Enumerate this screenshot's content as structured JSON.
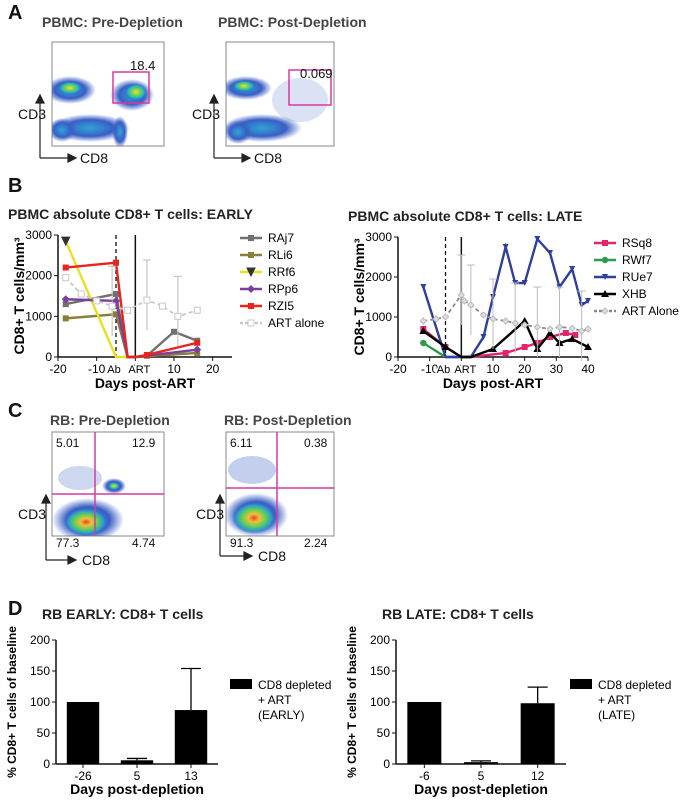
{
  "panels": {
    "a": "A",
    "b": "B",
    "c": "C",
    "d": "D"
  },
  "flow_a": [
    {
      "title": "PBMC: Pre-Depletion",
      "gate_value": "18.4",
      "ylabel": "CD3",
      "xlabel": "CD8"
    },
    {
      "title": "PBMC: Post-Depletion",
      "gate_value": "0.069",
      "ylabel": "CD3",
      "xlabel": "CD8"
    }
  ],
  "flow_c": [
    {
      "title": "RB: Pre-Depletion",
      "q_ul": "5.01",
      "q_ur": "12.9",
      "q_ll": "77.3",
      "q_lr": "4.74",
      "ylabel": "CD3",
      "xlabel": "CD8"
    },
    {
      "title": "RB: Post-Depletion",
      "q_ul": "6.11",
      "q_ur": "0.38",
      "q_ll": "91.3",
      "q_lr": "2.24",
      "ylabel": "CD3",
      "xlabel": "CD8"
    }
  ],
  "colors": {
    "RAj7": "#707070",
    "RLi6": "#8a7d3a",
    "RRf6": "#e8e020",
    "RPp6": "#7b3fa0",
    "RZI5": "#e8251d",
    "ART alone": "#c8c8c8",
    "RSq8": "#e0246e",
    "RWf7": "#2e9a4e",
    "RUe7": "#2e3f9e",
    "XHB": "#000000",
    "flow_gate": "#d63aa0"
  },
  "chart_data": [
    {
      "type": "line",
      "title": "PBMC absolute CD8+ T cells: EARLY",
      "xlabel": "Days post-ART",
      "ylabel": "CD8+ T cells/mm³",
      "xlim": [
        -20,
        25
      ],
      "ylim": [
        0,
        3000
      ],
      "xticks": [
        "-20",
        "-10",
        "0",
        "10",
        "20"
      ],
      "yticks": [
        "0",
        "1000",
        "2000",
        "3000"
      ],
      "annotations": [
        "Ab",
        "ART"
      ],
      "series": [
        {
          "name": "RAj7",
          "x": [
            -18,
            -5,
            -2,
            0,
            3,
            10,
            16
          ],
          "y": [
            1300,
            1550,
            0,
            0,
            30,
            620,
            400
          ]
        },
        {
          "name": "RLi6",
          "x": [
            -18,
            -5,
            -2,
            0,
            16
          ],
          "y": [
            950,
            1050,
            0,
            0,
            100
          ]
        },
        {
          "name": "RRf6",
          "x": [
            -18,
            -5,
            -2
          ],
          "y": [
            2850,
            0,
            0
          ]
        },
        {
          "name": "RPp6",
          "x": [
            -18,
            -5,
            -2,
            0,
            16
          ],
          "y": [
            1420,
            1380,
            0,
            0,
            180
          ]
        },
        {
          "name": "RZI5",
          "x": [
            -18,
            -5,
            -2,
            0,
            3,
            16
          ],
          "y": [
            2200,
            2320,
            0,
            0,
            50,
            350
          ]
        },
        {
          "name": "ART alone",
          "x": [
            -18,
            -14,
            -10,
            -6,
            -2,
            3,
            7,
            11,
            16
          ],
          "y": [
            1950,
            1550,
            1380,
            1250,
            1150,
            1400,
            1250,
            1000,
            1150
          ]
        }
      ],
      "legend": [
        "RAj7",
        "RLi6",
        "RRf6",
        "RPp6",
        "RZI5",
        "ART alone"
      ]
    },
    {
      "type": "line",
      "title": "PBMC absolute CD8+ T cells: LATE",
      "xlabel": "Days post-ART",
      "ylabel": "CD8+ T cells/mm³",
      "xlim": [
        -20,
        40
      ],
      "ylim": [
        0,
        3000
      ],
      "xticks": [
        "-20",
        "-10",
        "0",
        "10",
        "20",
        "30",
        "40"
      ],
      "yticks": [
        "0",
        "1000",
        "2000",
        "3000"
      ],
      "annotations": [
        "Ab",
        "ART"
      ],
      "series": [
        {
          "name": "RSq8",
          "x": [
            -12,
            -5,
            0,
            3,
            14,
            20,
            24,
            28,
            33,
            36
          ],
          "y": [
            700,
            250,
            0,
            0,
            100,
            250,
            350,
            500,
            600,
            550
          ]
        },
        {
          "name": "RWf7",
          "x": [
            -12,
            -5,
            0,
            3
          ],
          "y": [
            350,
            0,
            0,
            0
          ]
        },
        {
          "name": "RUe7",
          "x": [
            -12,
            -5,
            0,
            3,
            7,
            10,
            14,
            17,
            20,
            24,
            28,
            31,
            35,
            38,
            40
          ],
          "y": [
            1750,
            0,
            0,
            0,
            500,
            1500,
            2750,
            1850,
            1850,
            2950,
            2600,
            1750,
            2200,
            1300,
            1400
          ]
        },
        {
          "name": "XHB",
          "x": [
            -12,
            -5,
            0,
            3,
            10,
            20,
            24,
            28,
            31,
            35,
            40
          ],
          "y": [
            650,
            250,
            0,
            0,
            200,
            900,
            200,
            600,
            350,
            450,
            250
          ]
        },
        {
          "name": "ART Alone",
          "x": [
            -12,
            -8,
            -5,
            0,
            1,
            3,
            7,
            10,
            14,
            17,
            20,
            24,
            28,
            31,
            35,
            38,
            40
          ],
          "y": [
            900,
            950,
            1000,
            1550,
            1400,
            1300,
            1050,
            950,
            900,
            850,
            800,
            750,
            700,
            750,
            720,
            650,
            700
          ]
        }
      ],
      "legend": [
        "RSq8",
        "RWf7",
        "RUe7",
        "XHB",
        "ART Alone"
      ]
    },
    {
      "type": "bar",
      "title": "RB EARLY: CD8+ T cells",
      "xlabel": "Days post-depletion",
      "ylabel": "% CD8+ T cells of baseline",
      "ylim": [
        0,
        200
      ],
      "yticks": [
        "0",
        "50",
        "100",
        "150",
        "200"
      ],
      "categories": [
        "-26",
        "5",
        "13"
      ],
      "values": [
        100,
        6,
        87
      ],
      "errors": [
        0,
        3,
        67
      ],
      "legend": "CD8 depleted\n+ ART\n(EARLY)"
    },
    {
      "type": "bar",
      "title": "RB LATE: CD8+ T cells",
      "xlabel": "Days post-depletion",
      "ylabel": "% CD8+ T cells of baseline",
      "ylim": [
        0,
        200
      ],
      "yticks": [
        "0",
        "50",
        "100",
        "150",
        "200"
      ],
      "categories": [
        "-6",
        "5",
        "12"
      ],
      "values": [
        100,
        3,
        98
      ],
      "errors": [
        0,
        2,
        26
      ],
      "legend": "CD8 depleted\n+ ART\n(LATE)"
    }
  ]
}
